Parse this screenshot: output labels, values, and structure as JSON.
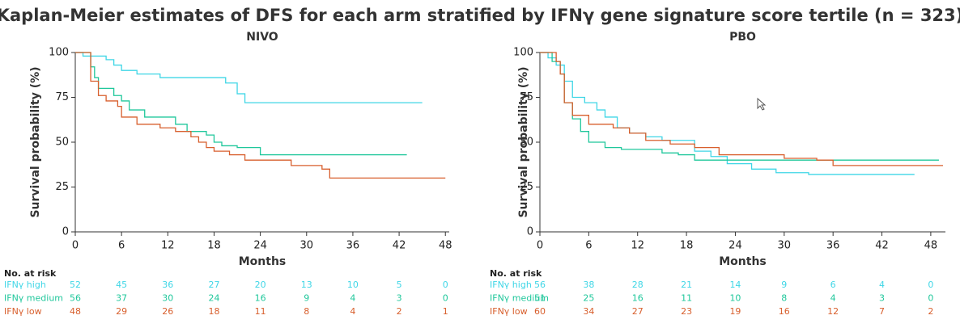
{
  "title": "Kaplan-Meier estimates of DFS for each arm stratified by IFNγ gene signature score tertile (n = 323)",
  "chart_data": [
    {
      "type": "step",
      "title": "NIVO",
      "xlabel": "Months",
      "ylabel": "Survival probability (%)",
      "xlim": [
        0,
        48.5
      ],
      "ylim": [
        0,
        100
      ],
      "xticks": [
        0,
        6,
        12,
        18,
        24,
        30,
        36,
        42,
        48
      ],
      "yticks": [
        0,
        25,
        50,
        75,
        100
      ],
      "risk_title": "No. at risk",
      "series": [
        {
          "name": "IFNγ high",
          "color": "#3fd6e6",
          "x": [
            0,
            1,
            4,
            5,
            6,
            8,
            11,
            19.5,
            21,
            22,
            45
          ],
          "values": [
            100,
            98,
            96,
            93,
            90,
            88,
            86,
            83,
            77,
            72,
            72
          ],
          "at_risk": [
            52,
            45,
            36,
            27,
            20,
            13,
            10,
            5,
            0
          ]
        },
        {
          "name": "IFNγ medium",
          "color": "#1fc79b",
          "x": [
            0,
            2,
            2.5,
            3,
            5,
            6,
            7,
            9,
            13,
            14.5,
            17,
            18,
            19,
            21,
            24,
            43
          ],
          "values": [
            100,
            92,
            86,
            80,
            76,
            73,
            68,
            64,
            60,
            56,
            54,
            50,
            48,
            47,
            43,
            43
          ],
          "at_risk": [
            56,
            37,
            30,
            24,
            16,
            9,
            4,
            3,
            0
          ]
        },
        {
          "name": "IFNγ low",
          "color": "#d85f2d",
          "x": [
            0,
            2,
            3,
            4,
            5.5,
            6,
            8,
            11,
            13,
            15,
            16,
            17,
            18,
            20,
            22,
            28,
            32,
            33,
            48
          ],
          "values": [
            100,
            84,
            76,
            73,
            70,
            64,
            60,
            58,
            56,
            53,
            50,
            47,
            45,
            43,
            40,
            37,
            35,
            30,
            30
          ],
          "at_risk": [
            48,
            29,
            26,
            18,
            11,
            8,
            4,
            2,
            1
          ]
        }
      ]
    },
    {
      "type": "step",
      "title": "PBO",
      "xlabel": "Months",
      "ylabel": "Survival probability (%)",
      "xlim": [
        0,
        49.8
      ],
      "ylim": [
        0,
        100
      ],
      "xticks": [
        0,
        6,
        12,
        18,
        24,
        30,
        36,
        42,
        48
      ],
      "yticks": [
        0,
        25,
        50,
        75,
        100
      ],
      "risk_title": "No. at risk",
      "series": [
        {
          "name": "IFNγ high",
          "color": "#3fd6e6",
          "x": [
            0,
            1,
            2,
            3,
            4,
            5.5,
            7,
            8,
            9.5,
            11,
            13,
            15,
            19,
            21,
            23,
            26,
            29,
            33,
            46
          ],
          "values": [
            100,
            97,
            93,
            84,
            75,
            72,
            68,
            64,
            58,
            55,
            53,
            51,
            45,
            42,
            38,
            35,
            33,
            32,
            32
          ],
          "at_risk": [
            56,
            38,
            28,
            21,
            14,
            9,
            6,
            4,
            0
          ]
        },
        {
          "name": "IFNγ medium",
          "color": "#1fc79b",
          "x": [
            0,
            1.5,
            2.5,
            3,
            4,
            5,
            6,
            8,
            10,
            15,
            17,
            19,
            49
          ],
          "values": [
            100,
            95,
            88,
            72,
            63,
            56,
            50,
            47,
            46,
            44,
            43,
            40,
            40
          ],
          "at_risk": [
            51,
            25,
            16,
            11,
            10,
            8,
            4,
            3,
            0
          ]
        },
        {
          "name": "IFNγ low",
          "color": "#d85f2d",
          "x": [
            0,
            2,
            2.5,
            3,
            4,
            6,
            9,
            11,
            13,
            16,
            19,
            22,
            30,
            34,
            36,
            49.5
          ],
          "values": [
            100,
            95,
            88,
            72,
            65,
            60,
            58,
            55,
            51,
            49,
            47,
            43,
            41,
            40,
            37,
            37
          ],
          "at_risk": [
            60,
            34,
            27,
            23,
            19,
            16,
            12,
            7,
            2
          ]
        }
      ]
    }
  ]
}
